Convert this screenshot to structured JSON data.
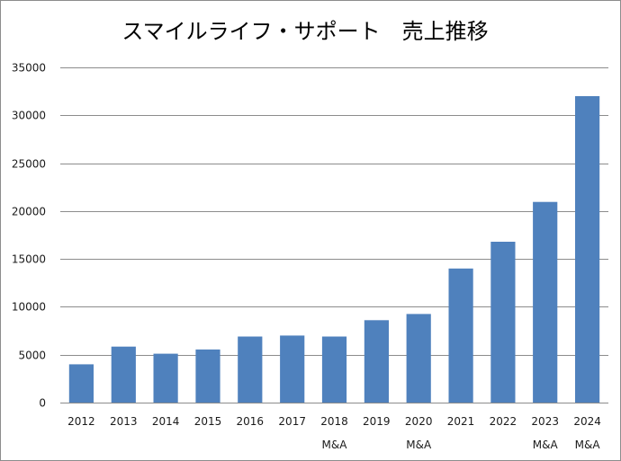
{
  "chart_data": {
    "type": "bar",
    "title": "スマイルライフ・サポート　売上推移",
    "categories": [
      "2012",
      "2013",
      "2014",
      "2015",
      "2016",
      "2017",
      "2018",
      "2019",
      "2020",
      "2021",
      "2022",
      "2023",
      "2024"
    ],
    "category_notes": [
      "",
      "",
      "",
      "",
      "",
      "",
      "M&A",
      "",
      "M&A",
      "",
      "",
      "M&A",
      "M&A"
    ],
    "values": [
      4000,
      5850,
      5100,
      5550,
      6900,
      7000,
      6900,
      8600,
      9250,
      14000,
      16800,
      20950,
      32000
    ],
    "ylim": [
      0,
      35000
    ],
    "yticks": [
      0,
      5000,
      10000,
      15000,
      20000,
      25000,
      30000,
      35000
    ],
    "xlabel": "",
    "ylabel": "",
    "grid": true,
    "legend": "none",
    "bar_color": "#4f81bd",
    "grid_color": "#8c8c8c"
  }
}
